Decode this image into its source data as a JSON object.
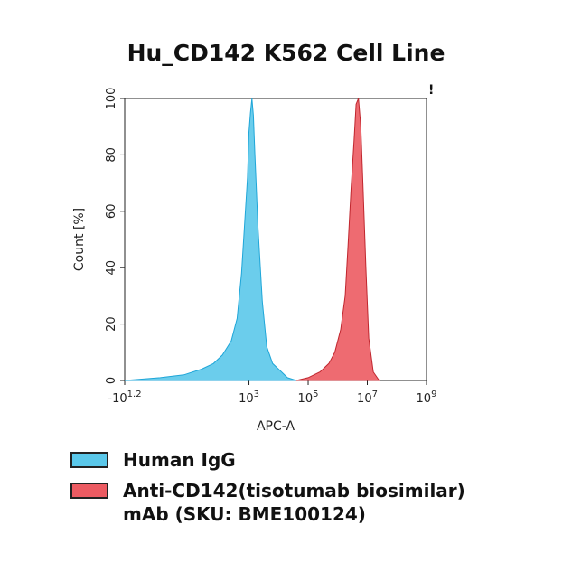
{
  "chart_data": {
    "type": "area",
    "title": "Hu_CD142 K562 Cell Line",
    "xlabel": "APC-A",
    "ylabel": "Count [%]",
    "xscale": "log",
    "xlim_log10": [
      -1.2,
      9
    ],
    "ylim": [
      0,
      100
    ],
    "xticks": [
      {
        "text": "-10",
        "sup": "1.2",
        "pos": -1.2
      },
      {
        "text": "10",
        "sup": "3",
        "pos": 3
      },
      {
        "text": "10",
        "sup": "5",
        "pos": 5
      },
      {
        "text": "10",
        "sup": "7",
        "pos": 7
      },
      {
        "text": "10",
        "sup": "9",
        "pos": 9
      }
    ],
    "yticks": [
      "0",
      "20",
      "40",
      "60",
      "80",
      "100"
    ],
    "series": [
      {
        "name": "Human IgG",
        "color": "#5bc8ea",
        "stroke": "#1fa6d8",
        "x_log10": [
          -1.2,
          0.0,
          0.8,
          1.4,
          1.8,
          2.1,
          2.4,
          2.6,
          2.75,
          2.85,
          2.95,
          3.0,
          3.05,
          3.1,
          3.15,
          3.2,
          3.3,
          3.45,
          3.6,
          3.8,
          4.0,
          4.3,
          4.6
        ],
        "y": [
          0,
          1,
          2,
          4,
          6,
          9,
          14,
          22,
          38,
          55,
          72,
          88,
          95,
          100,
          94,
          80,
          55,
          28,
          12,
          6,
          4,
          1,
          0
        ]
      },
      {
        "name": "Anti-CD142(tisotumab biosimilar) mAb (SKU: BME100124)",
        "color": "#ec5b62",
        "stroke": "#c0262e",
        "x_log10": [
          4.6,
          5.0,
          5.4,
          5.7,
          5.9,
          6.1,
          6.25,
          6.35,
          6.45,
          6.55,
          6.62,
          6.7,
          6.78,
          6.85,
          6.95,
          7.05,
          7.2,
          7.4
        ],
        "y": [
          0,
          1,
          3,
          6,
          10,
          18,
          30,
          48,
          68,
          85,
          98,
          100,
          90,
          70,
          40,
          15,
          3,
          0
        ]
      }
    ],
    "legend_placement": "bottom"
  }
}
